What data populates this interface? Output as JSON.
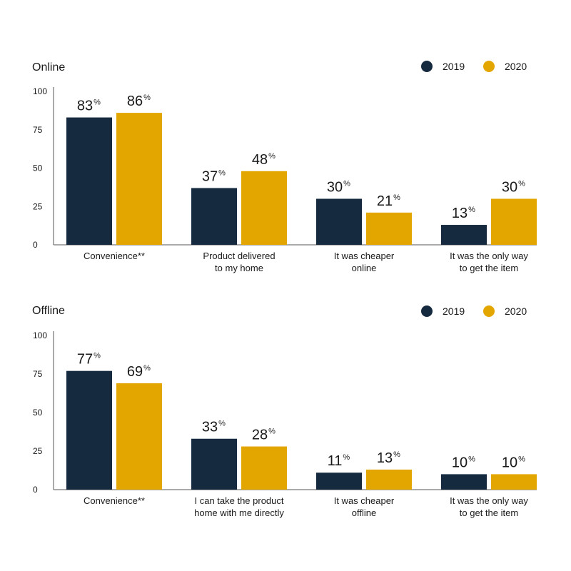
{
  "colors": {
    "y2019": "#152a3f",
    "y2020": "#e3a500",
    "axis": "#555555"
  },
  "chart_data": [
    {
      "type": "bar",
      "title": "Online",
      "categories": [
        [
          "Convenience**"
        ],
        [
          "Product delivered",
          "to my home"
        ],
        [
          "It was cheaper",
          "online"
        ],
        [
          "It was the only way",
          "to get the item"
        ]
      ],
      "series": [
        {
          "name": "2019",
          "values": [
            83,
            37,
            30,
            13
          ]
        },
        {
          "name": "2020",
          "values": [
            86,
            48,
            21,
            30
          ]
        }
      ],
      "value_suffix": "%",
      "yticks": [
        "0",
        "25",
        "50",
        "75",
        "100"
      ],
      "ylim": [
        0,
        100
      ],
      "legend": "top-right",
      "grid": false
    },
    {
      "type": "bar",
      "title": "Offline",
      "categories": [
        [
          "Convenience**"
        ],
        [
          "I can take the product",
          "home with me directly"
        ],
        [
          "It was cheaper",
          "offline"
        ],
        [
          "It was the only way",
          "to get the item"
        ]
      ],
      "series": [
        {
          "name": "2019",
          "values": [
            77,
            33,
            11,
            10
          ]
        },
        {
          "name": "2020",
          "values": [
            69,
            28,
            13,
            10
          ]
        }
      ],
      "value_suffix": "%",
      "yticks": [
        "0",
        "25",
        "50",
        "75",
        "100"
      ],
      "ylim": [
        0,
        100
      ],
      "legend": "top-right",
      "grid": false
    }
  ]
}
